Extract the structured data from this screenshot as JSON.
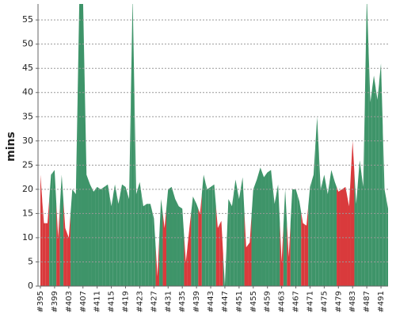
{
  "chart_data": {
    "type": "area",
    "y_label": "mins",
    "categories": [
      "#395",
      null,
      null,
      null,
      "#399",
      null,
      null,
      null,
      "#403",
      null,
      null,
      null,
      "#407",
      null,
      null,
      null,
      "#411",
      null,
      null,
      null,
      "#415",
      null,
      null,
      null,
      "#419",
      null,
      null,
      null,
      "#423",
      null,
      null,
      null,
      "#427",
      null,
      null,
      null,
      "#431",
      null,
      null,
      null,
      "#435",
      null,
      null,
      null,
      "#439",
      null,
      null,
      null,
      "#443",
      null,
      null,
      null,
      "#447",
      null,
      null,
      null,
      "#451",
      null,
      null,
      null,
      "#455",
      null,
      null,
      null,
      "#459",
      null,
      null,
      null,
      "#463",
      null,
      null,
      null,
      "#467",
      null,
      null,
      null,
      "#471",
      null,
      null,
      null,
      "#475",
      null,
      null,
      null,
      "#479",
      null,
      null,
      null,
      "#483",
      null,
      null,
      null,
      "#487",
      null,
      null,
      null,
      "#491",
      null,
      null
    ],
    "values": [
      23,
      13,
      13,
      23,
      24,
      10,
      23,
      12,
      10,
      20,
      19,
      60,
      60,
      23,
      21,
      19.5,
      20.5,
      20,
      20.5,
      21,
      16.5,
      21,
      17,
      21,
      20.5,
      18,
      60,
      19,
      21.5,
      16.5,
      17,
      17,
      14,
      2,
      18,
      12,
      20,
      20.5,
      18,
      16.5,
      16,
      5,
      12,
      18.5,
      17,
      15,
      23,
      20,
      20.5,
      21,
      12,
      13.5,
      0,
      18,
      16.5,
      22,
      18,
      22.5,
      8,
      9,
      20,
      22,
      24.5,
      22.5,
      23.5,
      24,
      17,
      21,
      5,
      20,
      6,
      20,
      20,
      17.5,
      13,
      12.5,
      20.5,
      23,
      35,
      20,
      23,
      19,
      24,
      21.5,
      19.5,
      20,
      20.5,
      16.5,
      30,
      17,
      26,
      20.5,
      60,
      38,
      43.5,
      38.5,
      46,
      20,
      16
    ],
    "point_colors": [
      "#d93a3c",
      "#d93a3c",
      "#d93a3c",
      "#3e9469",
      "#3e9469",
      "#d93a3c",
      "#3e9469",
      "#d93a3c",
      "#d93a3c",
      "#3e9469",
      "#3e9469",
      "#3e9469",
      "#3e9469",
      "#3e9469",
      "#3e9469",
      "#3e9469",
      "#3e9469",
      "#3e9469",
      "#3e9469",
      "#3e9469",
      "#3e9469",
      "#3e9469",
      "#3e9469",
      "#3e9469",
      "#3e9469",
      "#3e9469",
      "#3e9469",
      "#3e9469",
      "#3e9469",
      "#3e9469",
      "#3e9469",
      "#3e9469",
      "#3e9469",
      "#d93a3c",
      "#3e9469",
      "#d93a3c",
      "#3e9469",
      "#3e9469",
      "#3e9469",
      "#3e9469",
      "#3e9469",
      "#d93a3c",
      "#d93a3c",
      "#3e9469",
      "#3e9469",
      "#d93a3c",
      "#3e9469",
      "#3e9469",
      "#3e9469",
      "#3e9469",
      "#d93a3c",
      "#d93a3c",
      "#3e9469",
      "#3e9469",
      "#3e9469",
      "#3e9469",
      "#3e9469",
      "#3e9469",
      "#d93a3c",
      "#d93a3c",
      "#3e9469",
      "#3e9469",
      "#3e9469",
      "#3e9469",
      "#3e9469",
      "#3e9469",
      "#3e9469",
      "#3e9469",
      "#d93a3c",
      "#3e9469",
      "#d93a3c",
      "#3e9469",
      "#3e9469",
      "#3e9469",
      "#d93a3c",
      "#d93a3c",
      "#3e9469",
      "#3e9469",
      "#3e9469",
      "#3e9469",
      "#3e9469",
      "#3e9469",
      "#3e9469",
      "#3e9469",
      "#d93a3c",
      "#d93a3c",
      "#d93a3c",
      "#d93a3c",
      "#d93a3c",
      "#3e9469",
      "#3e9469",
      "#3e9469",
      "#3e9469",
      "#3e9469",
      "#3e9469",
      "#3e9469",
      "#3e9469",
      "#3e9469",
      "#3e9469"
    ],
    "ylim": [
      0,
      58.3
    ],
    "yticks": [
      0,
      5,
      10,
      15,
      20,
      25,
      30,
      35,
      40,
      45,
      50,
      55
    ],
    "grid": true
  }
}
